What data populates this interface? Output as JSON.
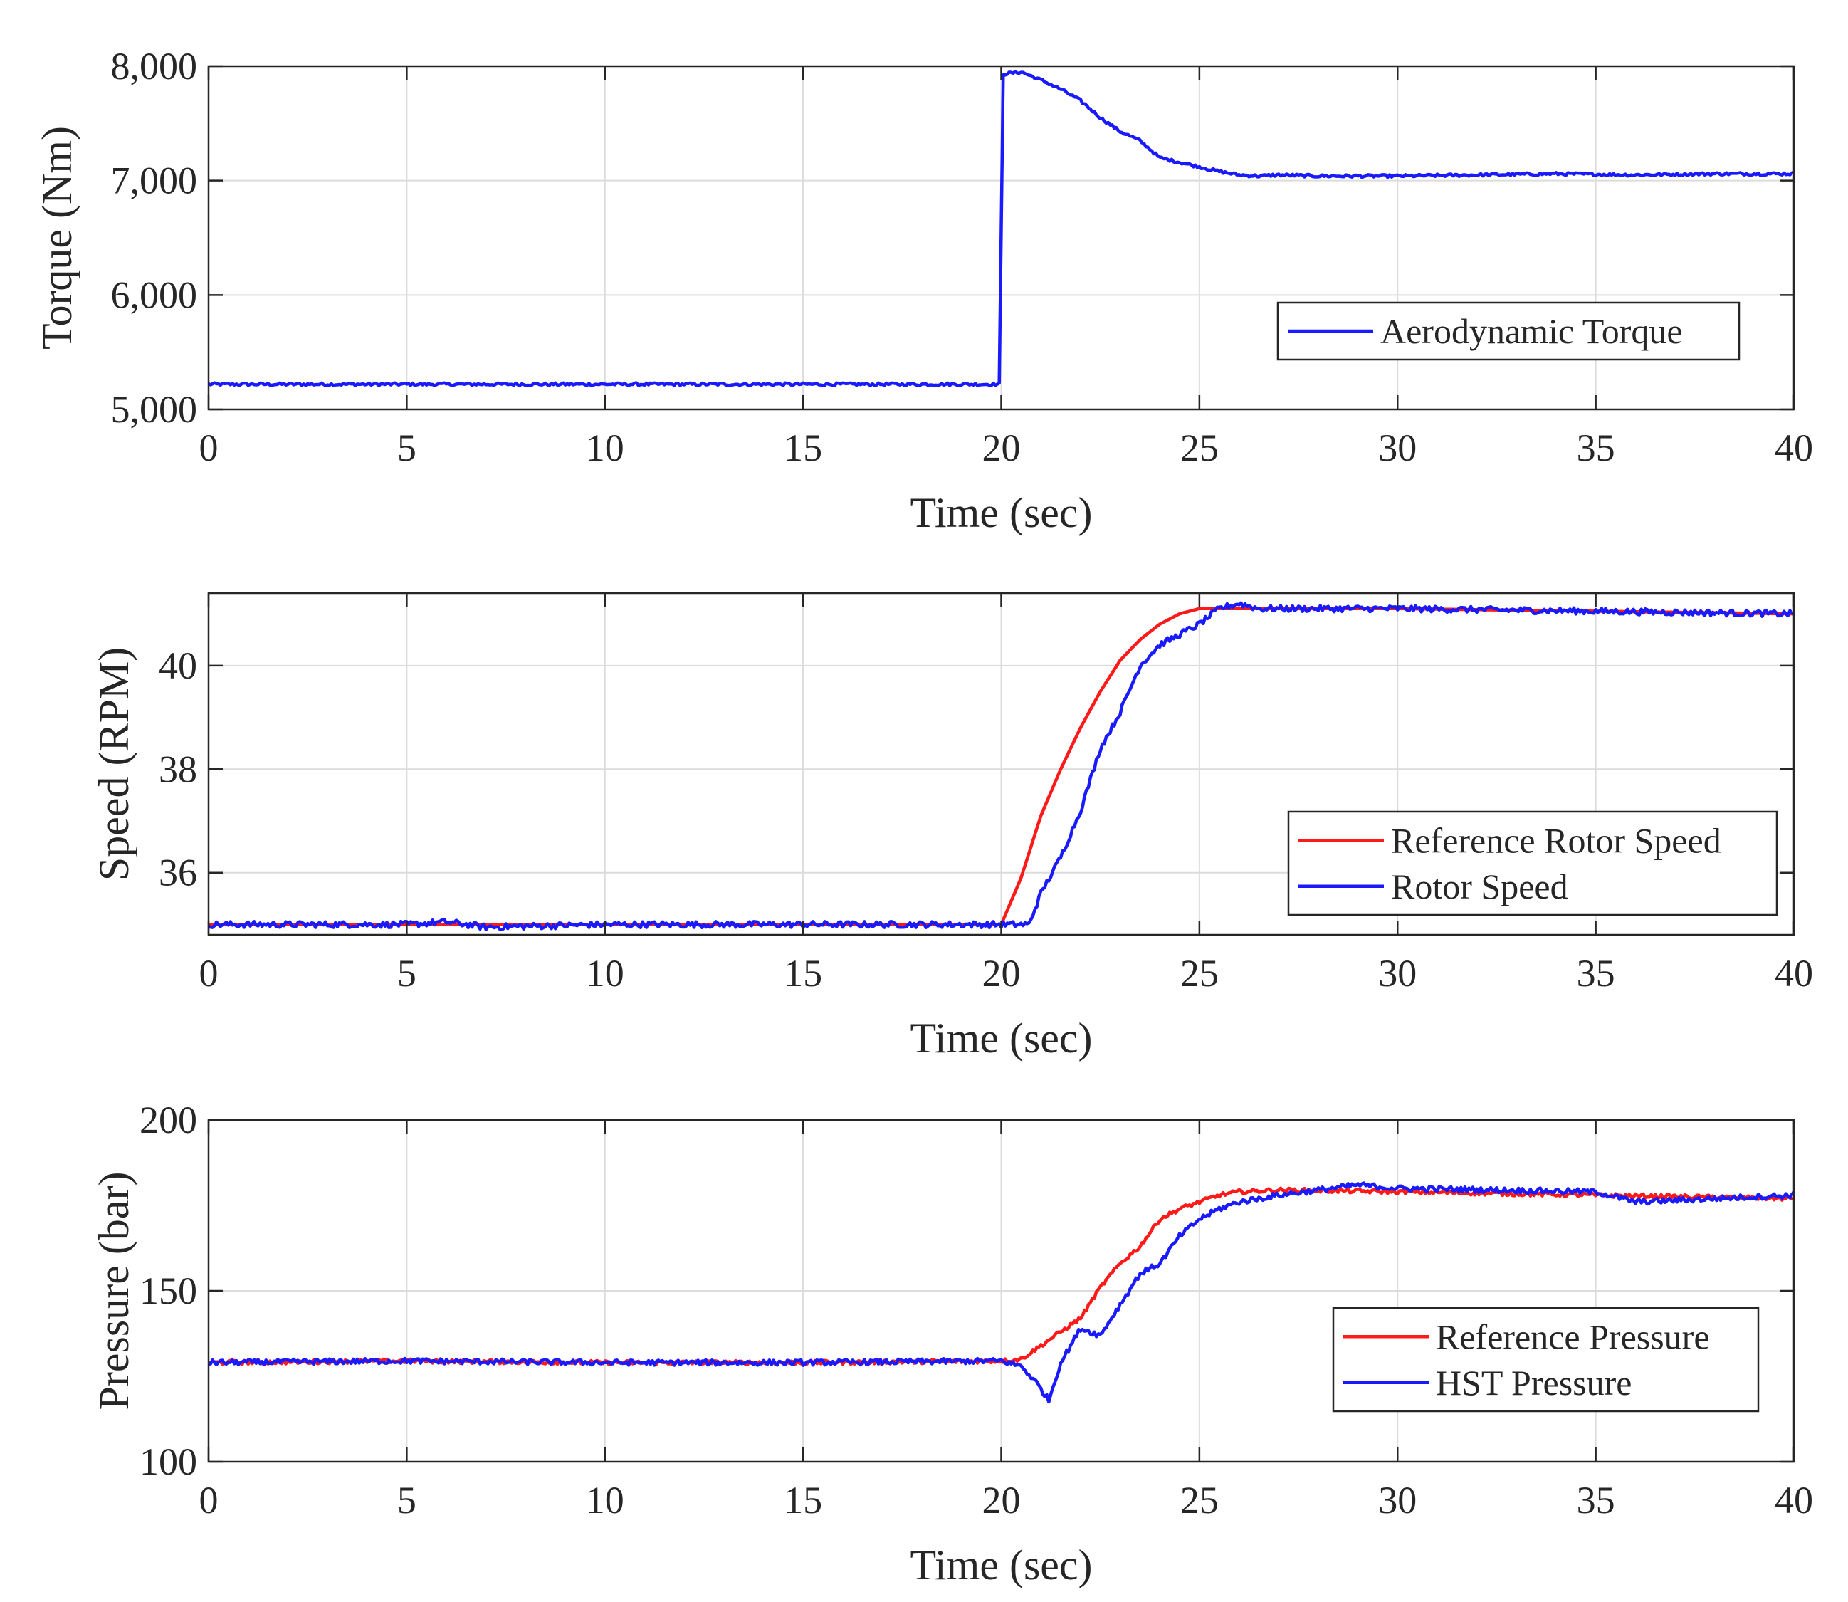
{
  "figure": {
    "background": "#ffffff",
    "axis_color": "#262626",
    "grid_color": "#dcdcdc",
    "colors": {
      "red": "#ff1a1a",
      "blue": "#1a1aff"
    }
  },
  "chart_data": [
    {
      "type": "line",
      "title": "",
      "xlabel": "Time (sec)",
      "ylabel": "Torque (Nm)",
      "xlim": [
        0,
        40
      ],
      "ylim": [
        5000,
        8000
      ],
      "xticks": [
        0,
        5,
        10,
        15,
        20,
        25,
        30,
        35,
        40
      ],
      "xtick_labels": [
        "0",
        "5",
        "10",
        "15",
        "20",
        "25",
        "30",
        "35",
        "40"
      ],
      "yticks": [
        5000,
        6000,
        7000,
        8000
      ],
      "ytick_labels": [
        "5,000",
        "6,000",
        "7,000",
        "8,000"
      ],
      "grid": true,
      "legend_location": "lower-right",
      "series": [
        {
          "name": "Aerodynamic Torque",
          "color": "#1a1aff",
          "noise": 12,
          "x": [
            0,
            5,
            10,
            15,
            19.98,
            20.02,
            20.5,
            21,
            21.5,
            22,
            22.5,
            23,
            23.5,
            24,
            24.5,
            25,
            25.5,
            26,
            26.5,
            27,
            28,
            29,
            30,
            32,
            34,
            36,
            38,
            40
          ],
          "y": [
            5220,
            5220,
            5220,
            5220,
            5220,
            7930,
            7950,
            7880,
            7800,
            7700,
            7550,
            7430,
            7350,
            7200,
            7160,
            7120,
            7080,
            7050,
            7040,
            7050,
            7040,
            7040,
            7040,
            7050,
            7060,
            7050,
            7060,
            7060
          ]
        }
      ]
    },
    {
      "type": "line",
      "title": "",
      "xlabel": "Time (sec)",
      "ylabel": "Speed (RPM)",
      "xlim": [
        0,
        40
      ],
      "ylim": [
        34.8,
        41.4
      ],
      "xticks": [
        0,
        5,
        10,
        15,
        20,
        25,
        30,
        35,
        40
      ],
      "xtick_labels": [
        "0",
        "5",
        "10",
        "15",
        "20",
        "25",
        "30",
        "35",
        "40"
      ],
      "yticks": [
        36,
        38,
        40
      ],
      "ytick_labels": [
        "36",
        "38",
        "40"
      ],
      "grid": true,
      "legend_location": "lower-right",
      "series": [
        {
          "name": "Reference Rotor Speed",
          "color": "#ff1a1a",
          "noise": 0,
          "x": [
            0,
            20,
            20.5,
            21,
            21.5,
            22,
            22.5,
            23,
            23.5,
            24,
            24.5,
            25,
            25.5,
            26,
            27,
            30,
            35,
            40
          ],
          "y": [
            35.0,
            35.0,
            35.9,
            37.1,
            38.0,
            38.8,
            39.5,
            40.1,
            40.5,
            40.8,
            41.0,
            41.1,
            41.1,
            41.1,
            41.1,
            41.1,
            41.05,
            41.0
          ]
        },
        {
          "name": "Rotor Speed",
          "color": "#1a1aff",
          "noise": 0.06,
          "x": [
            0,
            5,
            6,
            7,
            10,
            15,
            20,
            20.7,
            21,
            21.5,
            22,
            22.5,
            23,
            23.5,
            24,
            24.5,
            25,
            25.5,
            26,
            26.5,
            30,
            35,
            40
          ],
          "y": [
            35.0,
            35.0,
            35.05,
            34.95,
            35.0,
            35.0,
            35.0,
            35.0,
            35.6,
            36.3,
            37.2,
            38.4,
            39.1,
            40.0,
            40.4,
            40.6,
            40.8,
            41.1,
            41.2,
            41.1,
            41.1,
            41.05,
            41.0
          ]
        }
      ]
    },
    {
      "type": "line",
      "title": "",
      "xlabel": "Time (sec)",
      "ylabel": "Pressure (bar)",
      "xlim": [
        0,
        40
      ],
      "ylim": [
        100,
        200
      ],
      "xticks": [
        0,
        5,
        10,
        15,
        20,
        25,
        30,
        35,
        40
      ],
      "xtick_labels": [
        "0",
        "5",
        "10",
        "15",
        "20",
        "25",
        "30",
        "35",
        "40"
      ],
      "yticks": [
        100,
        150,
        200
      ],
      "ytick_labels": [
        "100",
        "150",
        "200"
      ],
      "grid": true,
      "legend_location": "lower-right",
      "series": [
        {
          "name": "Reference Pressure",
          "color": "#ff1a1a",
          "noise": 0.6,
          "x": [
            0,
            5,
            10,
            15,
            20,
            20.5,
            21,
            21.5,
            22,
            22.5,
            23,
            23.5,
            24,
            24.5,
            25,
            25.5,
            26,
            27,
            30,
            35,
            40
          ],
          "y": [
            129,
            129.5,
            129,
            129,
            129.5,
            130,
            134,
            138,
            142,
            151,
            158,
            163,
            171,
            174,
            176,
            178,
            179,
            179.5,
            179,
            178,
            177
          ]
        },
        {
          "name": "HST Pressure",
          "color": "#1a1aff",
          "noise": 0.8,
          "x": [
            0,
            5,
            10,
            15,
            20,
            20.5,
            20.9,
            21.2,
            21.5,
            22,
            22.5,
            23,
            23.5,
            24,
            24.5,
            25,
            25.5,
            26,
            27,
            29,
            30,
            35,
            36,
            40
          ],
          "y": [
            129,
            129.5,
            129,
            129,
            129.5,
            128,
            123,
            118,
            129,
            139,
            137,
            146,
            155,
            158,
            166,
            171,
            174,
            176,
            178,
            181,
            180,
            179,
            176,
            178
          ]
        }
      ]
    }
  ]
}
